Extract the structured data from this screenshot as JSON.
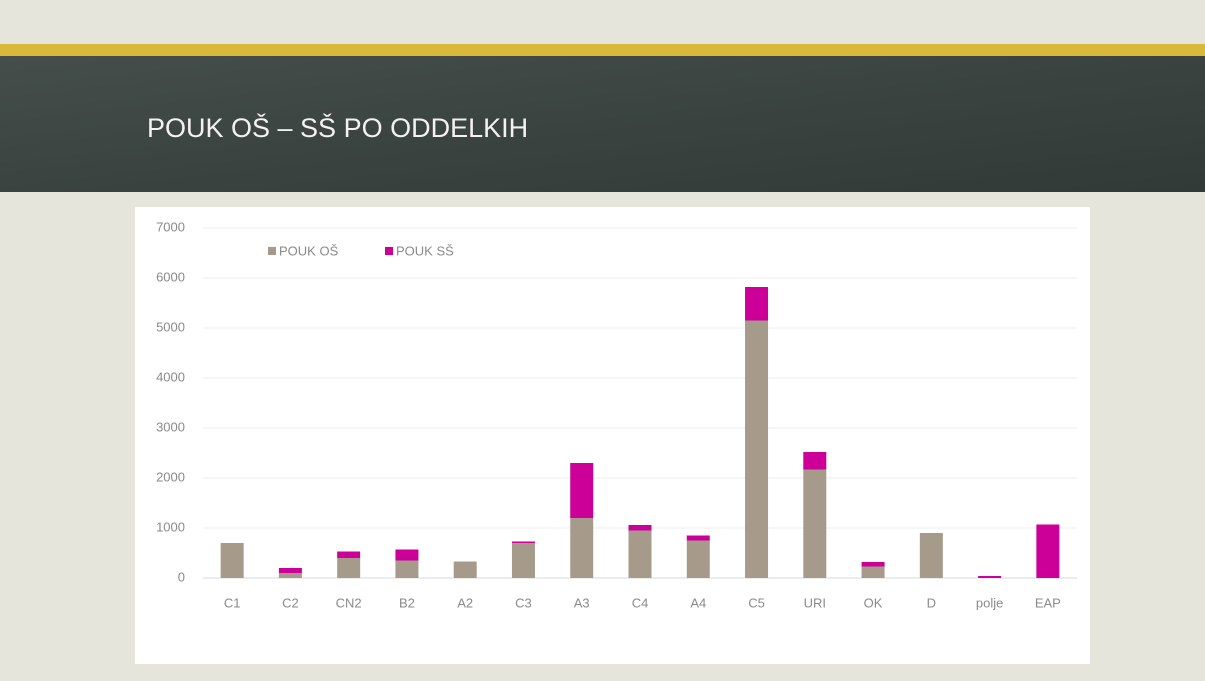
{
  "chart_data": {
    "type": "stacked_bar",
    "title": "POUK OŠ – SŠ PO ODDELKIH",
    "categories": [
      "C1",
      "C2",
      "CN2",
      "B2",
      "A2",
      "C3",
      "A3",
      "C4",
      "A4",
      "C5",
      "URI",
      "OK",
      "D",
      "polje",
      "EAP"
    ],
    "series": [
      {
        "name": "POUK OŠ",
        "color": "#a69b8b",
        "values": [
          700,
          100,
          400,
          350,
          330,
          700,
          1200,
          950,
          750,
          5150,
          2170,
          230,
          900,
          0,
          0
        ]
      },
      {
        "name": "POUK SŠ",
        "color": "#cc0099",
        "values": [
          0,
          100,
          130,
          220,
          0,
          30,
          1100,
          110,
          100,
          670,
          350,
          90,
          0,
          40,
          1070
        ]
      }
    ],
    "ylim": [
      0,
      7000
    ],
    "yticks": [
      0,
      1000,
      2000,
      3000,
      4000,
      5000,
      6000,
      7000
    ],
    "grid": true,
    "legend": "top-left"
  }
}
